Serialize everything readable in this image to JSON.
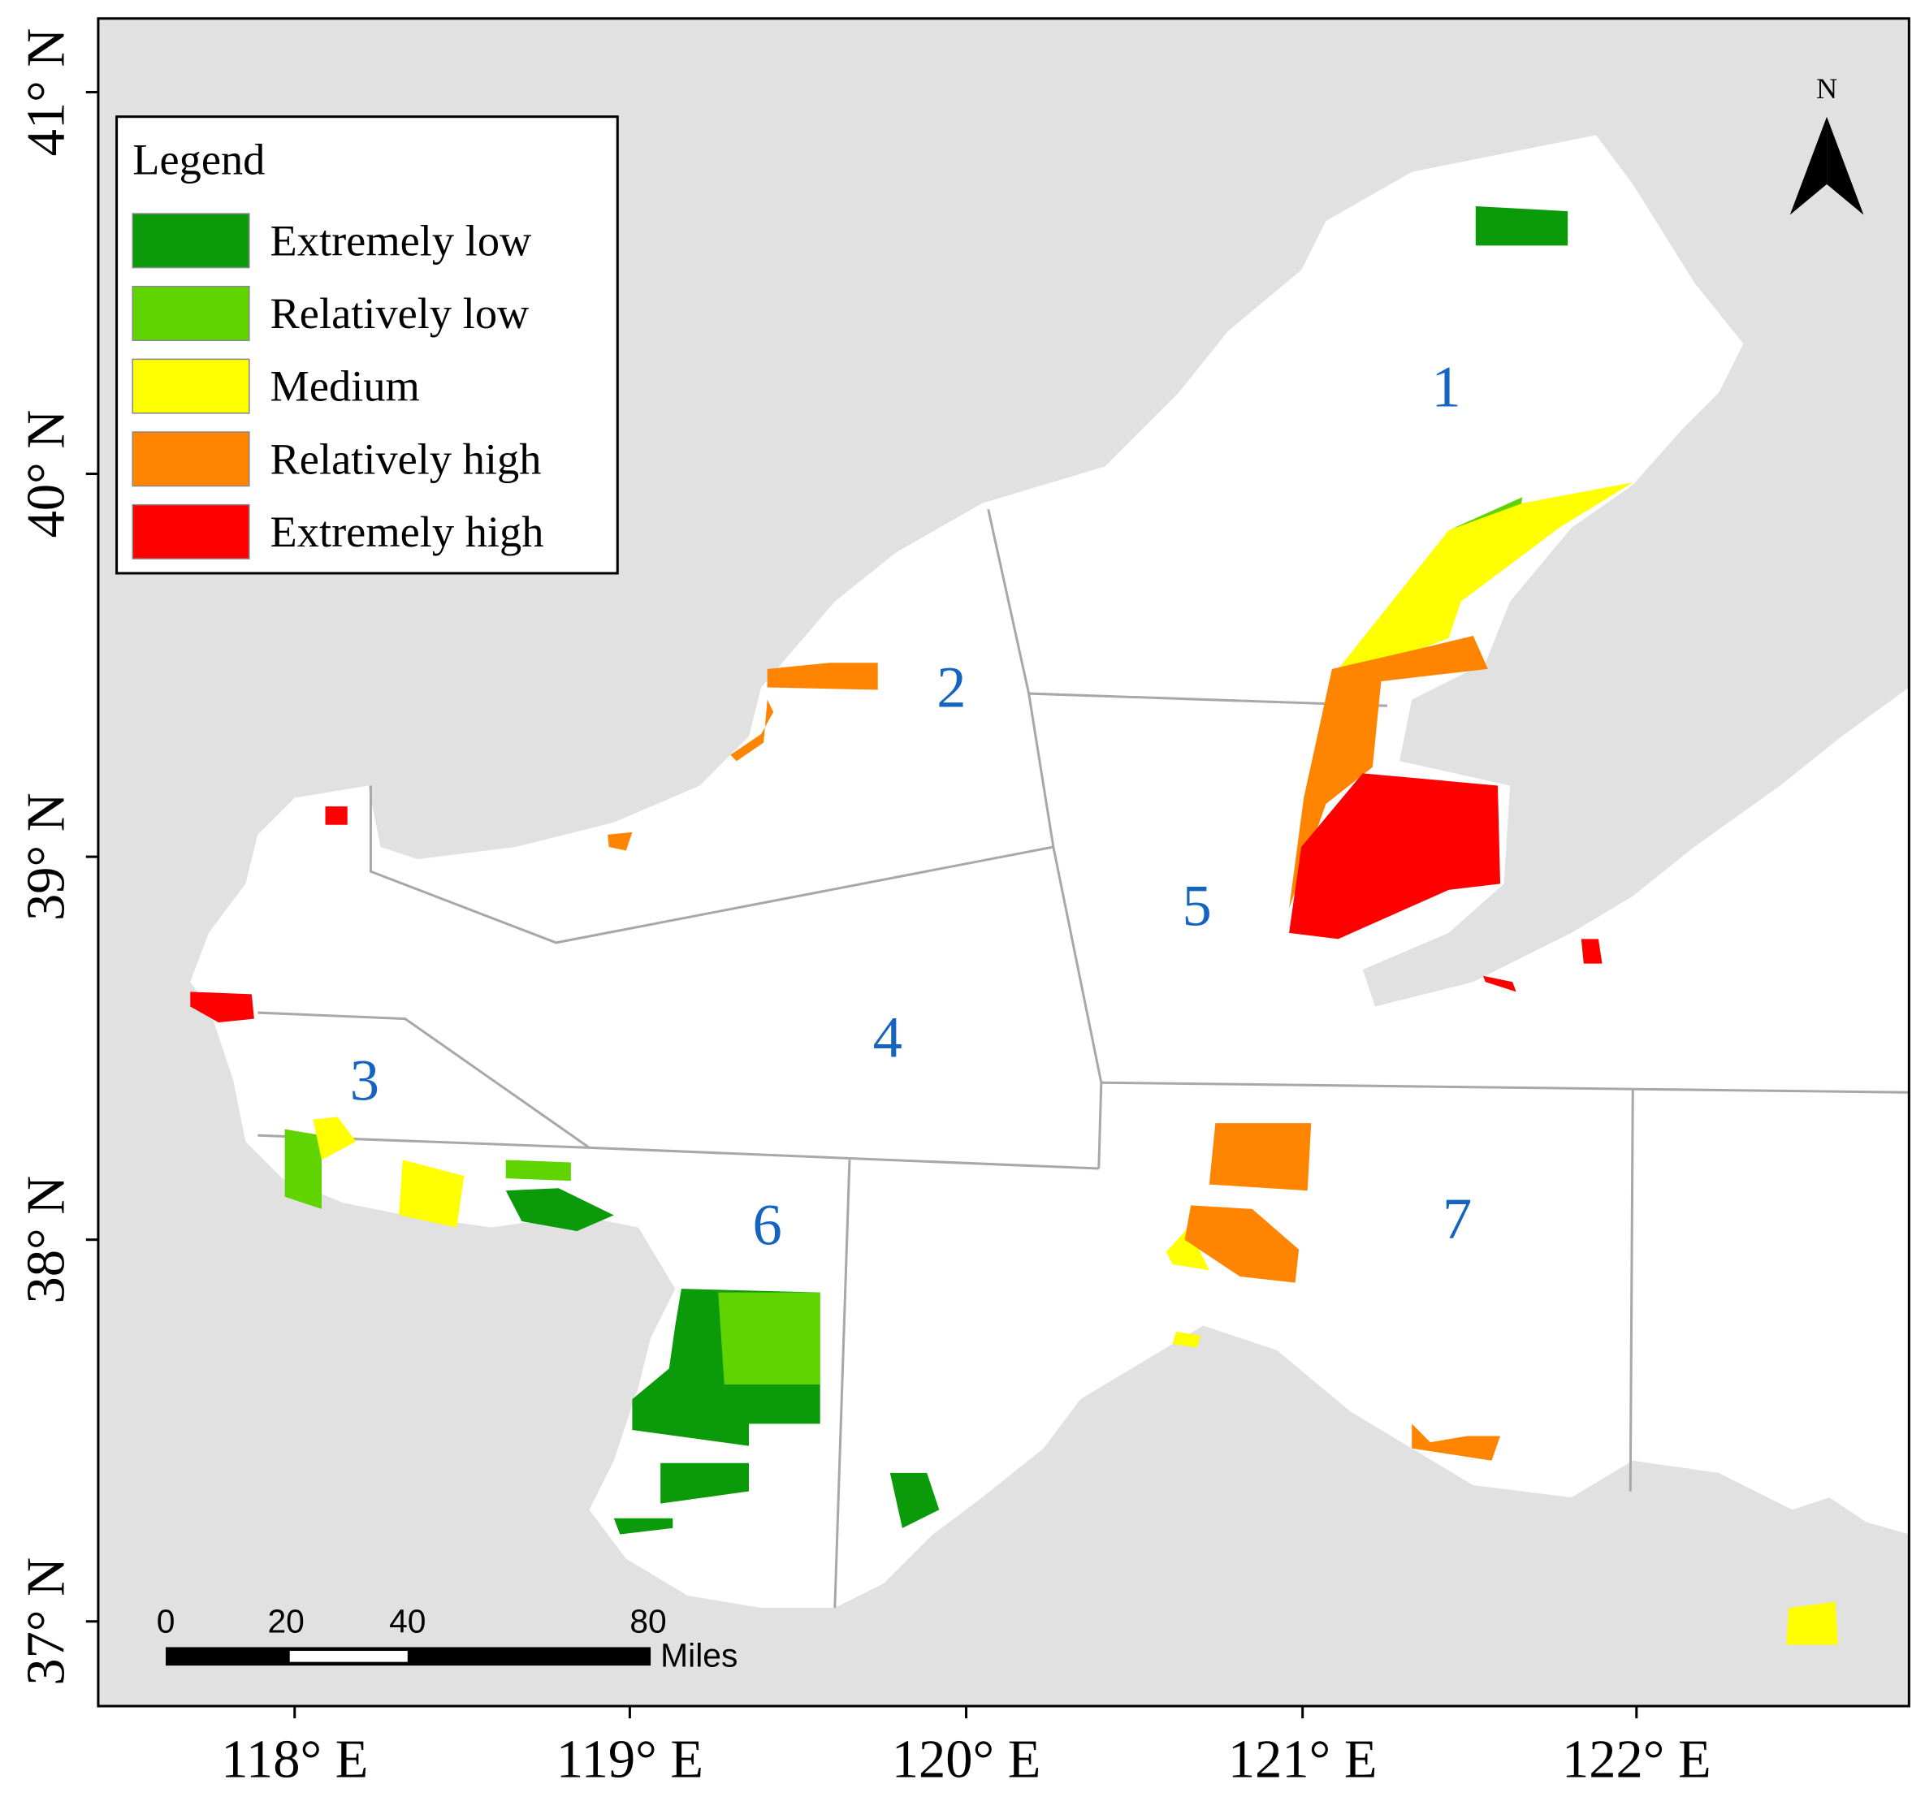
{
  "legend": {
    "title": "Legend",
    "items": [
      {
        "label": "Extremely low",
        "color": "#0a9a0a"
      },
      {
        "label": "Relatively low",
        "color": "#5fd400"
      },
      {
        "label": "Medium",
        "color": "#ffff00"
      },
      {
        "label": "Relatively high",
        "color": "#ff8400"
      },
      {
        "label": "Extremely high",
        "color": "#ff0000"
      }
    ]
  },
  "regions": [
    "1",
    "2",
    "3",
    "4",
    "5",
    "6",
    "7"
  ],
  "latitude_labels": [
    "41° N",
    "40° N",
    "39° N",
    "38° N",
    "37° N"
  ],
  "longitude_labels": [
    "118° E",
    "119° E",
    "120° E",
    "121° E",
    "122° E"
  ],
  "scale_bar": {
    "ticks": [
      "0",
      "20",
      "40",
      "80"
    ],
    "unit": "Miles"
  },
  "north_arrow": "N"
}
